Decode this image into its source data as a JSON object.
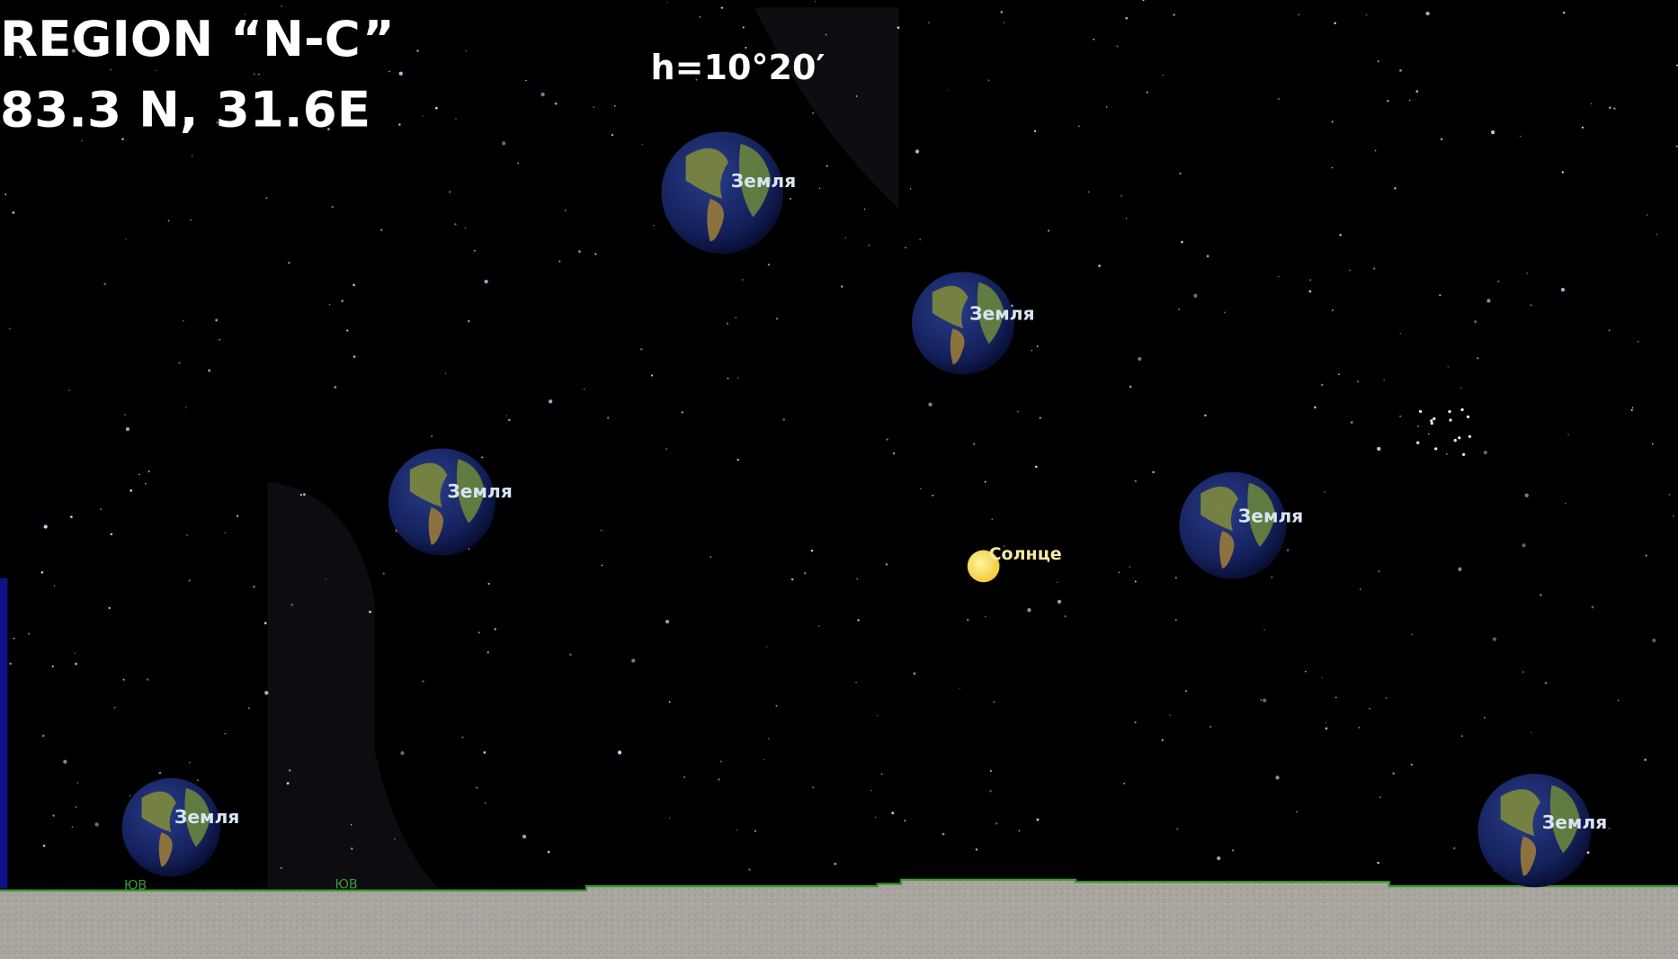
{
  "header": {
    "region": "REGION “N-C”",
    "coords": "83.3 N, 31.6E"
  },
  "altitude": "h=10°20′",
  "bodies": [
    {
      "label": "Земля"
    },
    {
      "label": "Земля"
    },
    {
      "label": "Земля"
    },
    {
      "label": "Земля"
    },
    {
      "label": "Земля"
    },
    {
      "label": "Земля"
    }
  ],
  "sun": {
    "label": "Солнце"
  },
  "directions": [
    "ЮВ",
    "ЮВ"
  ]
}
